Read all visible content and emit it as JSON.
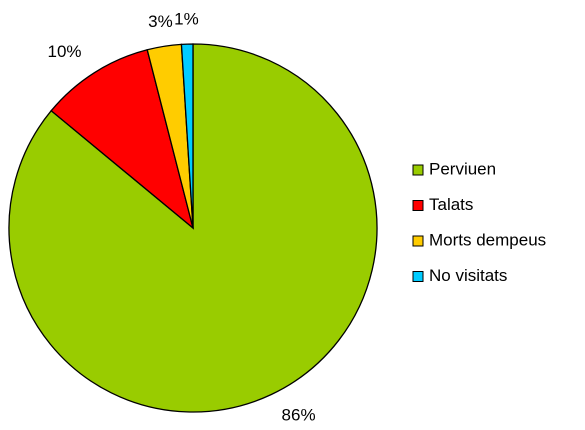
{
  "chart_data": {
    "type": "pie",
    "categories": [
      "Perviuen",
      "Talats",
      "Morts dempeus",
      "No visitats"
    ],
    "values": [
      86,
      10,
      3,
      1
    ],
    "value_labels": [
      "86%",
      "10%",
      "3%",
      "1%"
    ],
    "colors": [
      "#99cc00",
      "#ff0000",
      "#ffcc00",
      "#00ccff"
    ],
    "legend": "right"
  }
}
